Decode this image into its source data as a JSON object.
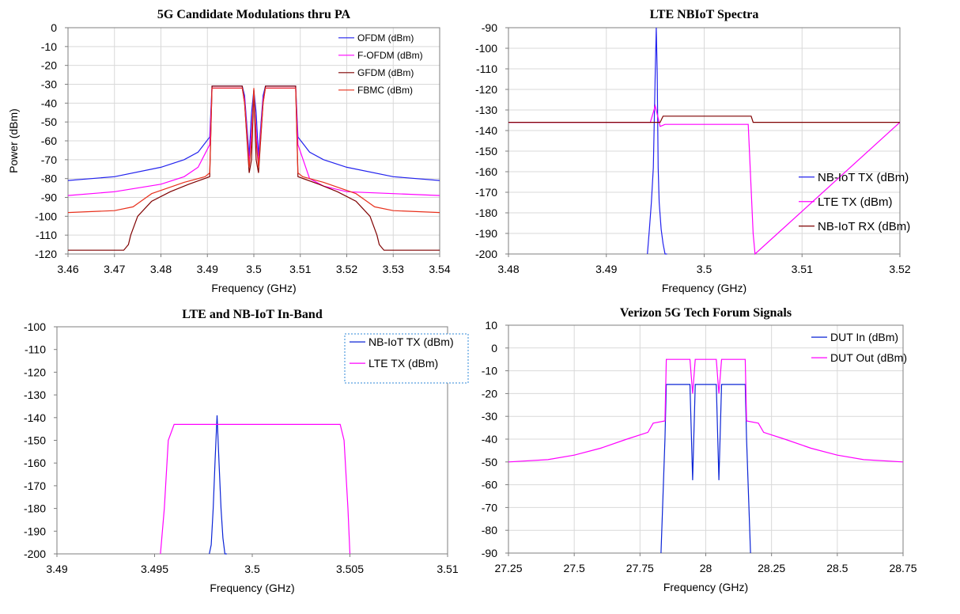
{
  "colors": {
    "blue": "#2222ee",
    "magenta": "#ff00ff",
    "darkred": "#7f0000",
    "red": "#e8301c",
    "navy": "#0b24d6"
  },
  "chart_data": [
    {
      "id": "c1",
      "type": "line",
      "title": "5G Candidate Modulations thru PA",
      "xlabel": "Frequency (GHz)",
      "ylabel": "Power (dBm)",
      "xlim": [
        3.46,
        3.54
      ],
      "ylim": [
        -120,
        0
      ],
      "xticks": [
        3.46,
        3.47,
        3.48,
        3.49,
        3.5,
        3.51,
        3.52,
        3.53,
        3.54
      ],
      "xtick_labels": [
        "3.46",
        "3.47",
        "3.48",
        "3.49",
        "3.5",
        "3.51",
        "3.52",
        "3.53",
        "3.54"
      ],
      "yticks": [
        0,
        -10,
        -20,
        -30,
        -40,
        -50,
        -60,
        -70,
        -80,
        -90,
        -100,
        -110,
        -120
      ],
      "ytick_labels": [
        "0",
        "-10",
        "-20",
        "-30",
        "-40",
        "-50",
        "-60",
        "-70",
        "-80",
        "-90",
        "-100",
        "-110",
        "-120"
      ],
      "grid": true,
      "legend": "top-right",
      "series": [
        {
          "name": "OFDM (dBm)",
          "color_key": "blue",
          "x": [
            3.46,
            3.47,
            3.48,
            3.485,
            3.488,
            3.4905,
            3.491,
            3.4975,
            3.498,
            3.499,
            3.4995,
            3.5,
            3.5005,
            3.501,
            3.502,
            3.5025,
            3.509,
            3.5095,
            3.512,
            3.515,
            3.52,
            3.53,
            3.54
          ],
          "y": [
            -81,
            -79,
            -74,
            -70,
            -66,
            -58,
            -31,
            -31,
            -36,
            -68,
            -45,
            -33,
            -45,
            -68,
            -36,
            -31,
            -31,
            -58,
            -66,
            -70,
            -74,
            -79,
            -81
          ]
        },
        {
          "name": "F-OFDM (dBm)",
          "color_key": "magenta",
          "x": [
            3.46,
            3.47,
            3.48,
            3.485,
            3.488,
            3.4905,
            3.491,
            3.4975,
            3.498,
            3.499,
            3.4995,
            3.5,
            3.5005,
            3.501,
            3.502,
            3.5025,
            3.509,
            3.5095,
            3.512,
            3.515,
            3.52,
            3.53,
            3.54
          ],
          "y": [
            -89,
            -87,
            -83,
            -79,
            -74,
            -62,
            -32,
            -32,
            -38,
            -72,
            -55,
            -35,
            -55,
            -72,
            -38,
            -32,
            -32,
            -62,
            -80,
            -84,
            -87,
            -88,
            -89
          ]
        },
        {
          "name": "GFDM (dBm)",
          "color_key": "darkred",
          "x": [
            3.46,
            3.472,
            3.473,
            3.4735,
            3.475,
            3.478,
            3.482,
            3.486,
            3.4905,
            3.491,
            3.4975,
            3.498,
            3.499,
            3.4995,
            3.5,
            3.5005,
            3.501,
            3.502,
            3.5025,
            3.509,
            3.5095,
            3.514,
            3.518,
            3.522,
            3.525,
            3.5265,
            3.527,
            3.528,
            3.54
          ],
          "y": [
            -118,
            -118,
            -115,
            -110,
            -100,
            -92,
            -87,
            -83,
            -79,
            -31,
            -31,
            -40,
            -77,
            -70,
            -33,
            -70,
            -77,
            -40,
            -31,
            -31,
            -79,
            -83,
            -87,
            -92,
            -100,
            -110,
            -115,
            -118,
            -118
          ]
        },
        {
          "name": "FBMC (dBm)",
          "color_key": "red",
          "x": [
            3.46,
            3.47,
            3.474,
            3.478,
            3.485,
            3.4895,
            3.4905,
            3.491,
            3.4975,
            3.498,
            3.499,
            3.4995,
            3.5,
            3.5005,
            3.501,
            3.502,
            3.5025,
            3.509,
            3.5095,
            3.5105,
            3.515,
            3.522,
            3.526,
            3.53,
            3.54
          ],
          "y": [
            -98,
            -97,
            -95,
            -88,
            -82,
            -79,
            -77,
            -32,
            -32,
            -40,
            -74,
            -60,
            -32,
            -60,
            -74,
            -40,
            -32,
            -32,
            -77,
            -79,
            -82,
            -88,
            -95,
            -97,
            -98
          ]
        }
      ]
    },
    {
      "id": "c2",
      "type": "line",
      "title": "LTE NBIoT Spectra",
      "xlabel": "Frequency (GHz)",
      "ylabel": "",
      "xlim": [
        3.48,
        3.52
      ],
      "ylim": [
        -200,
        -90
      ],
      "xticks": [
        3.48,
        3.49,
        3.5,
        3.51,
        3.52
      ],
      "xtick_labels": [
        "3.48",
        "3.49",
        "3.5",
        "3.51",
        "3.52"
      ],
      "yticks": [
        -90,
        -100,
        -110,
        -120,
        -130,
        -140,
        -150,
        -160,
        -170,
        -180,
        -190,
        -200
      ],
      "ytick_labels": [
        "-90",
        "-100",
        "-110",
        "-120",
        "-130",
        "-140",
        "-150",
        "-160",
        "-170",
        "-180",
        "-190",
        "-200"
      ],
      "grid": true,
      "legend": "right",
      "series": [
        {
          "name": "NB-IoT TX (dBm)",
          "color_key": "blue",
          "x": [
            3.4942,
            3.4944,
            3.4946,
            3.4948,
            3.495,
            3.4951,
            3.4952,
            3.4953,
            3.4954,
            3.4956,
            3.4958,
            3.496,
            3.4962
          ],
          "y": [
            -200,
            -188,
            -175,
            -158,
            -112,
            -90,
            -112,
            -158,
            -175,
            -188,
            -195,
            -200,
            -200
          ]
        },
        {
          "name": "LTE TX (dBm)",
          "color_key": "magenta",
          "x": [
            3.48,
            3.4945,
            3.495,
            3.4955,
            3.496,
            3.5045,
            3.505,
            3.5052,
            3.52
          ],
          "y": [
            -136,
            -136,
            -128,
            -138,
            -137,
            -137,
            -190,
            -200,
            -136
          ]
        },
        {
          "name": "NB-IoT RX (dBm)",
          "color_key": "darkred",
          "x": [
            3.48,
            3.4955,
            3.4958,
            3.5048,
            3.505,
            3.52
          ],
          "y": [
            -136,
            -136,
            -133,
            -133,
            -136,
            -136
          ]
        }
      ]
    },
    {
      "id": "c3",
      "type": "line",
      "title": "LTE and NB-IoT In-Band",
      "xlabel": "Frequency (GHz)",
      "ylabel": "",
      "xlim": [
        3.49,
        3.51
      ],
      "ylim": [
        -200,
        -100
      ],
      "xticks": [
        3.49,
        3.495,
        3.5,
        3.505,
        3.51
      ],
      "xtick_labels": [
        "3.49",
        "3.495",
        "3.5",
        "3.505",
        "3.51"
      ],
      "yticks": [
        -100,
        -110,
        -120,
        -130,
        -140,
        -150,
        -160,
        -170,
        -180,
        -190,
        -200
      ],
      "ytick_labels": [
        "-100",
        "-110",
        "-120",
        "-130",
        "-140",
        "-150",
        "-160",
        "-170",
        "-180",
        "-190",
        "-200"
      ],
      "grid": false,
      "legend": "top-right",
      "series": [
        {
          "name": "NB-IoT TX (dBm)",
          "color_key": "navy",
          "x": [
            3.4978,
            3.4979,
            3.498,
            3.4981,
            3.4982,
            3.4983,
            3.4984,
            3.4985,
            3.4986,
            3.4987
          ],
          "y": [
            -200,
            -196,
            -180,
            -158,
            -139,
            -160,
            -180,
            -193,
            -200,
            -200
          ]
        },
        {
          "name": "LTE TX (dBm)",
          "color_key": "magenta",
          "x": [
            3.4953,
            3.4955,
            3.4957,
            3.496,
            3.5,
            3.5045,
            3.5047,
            3.5049,
            3.505
          ],
          "y": [
            -200,
            -180,
            -150,
            -143,
            -143,
            -143,
            -150,
            -180,
            -200
          ]
        }
      ]
    },
    {
      "id": "c4",
      "type": "line",
      "title": "Verizon 5G Tech Forum Signals",
      "xlabel": "Frequency (GHz)",
      "ylabel": "",
      "xlim": [
        27.25,
        28.75
      ],
      "ylim": [
        -90,
        10
      ],
      "xticks": [
        27.25,
        27.5,
        27.75,
        28,
        28.25,
        28.5,
        28.75
      ],
      "xtick_labels": [
        "27.25",
        "27.5",
        "27.75",
        "28",
        "28.25",
        "28.5",
        "28.75"
      ],
      "yticks": [
        10,
        0,
        -10,
        -20,
        -30,
        -40,
        -50,
        -60,
        -70,
        -80,
        -90
      ],
      "ytick_labels": [
        "10",
        "0",
        "-10",
        "-20",
        "-30",
        "-40",
        "-50",
        "-60",
        "-70",
        "-80",
        "-90"
      ],
      "grid": true,
      "legend": "top-right",
      "series": [
        {
          "name": "DUT In (dBm)",
          "color_key": "navy",
          "x": [
            27.83,
            27.845,
            27.85,
            27.94,
            27.95,
            27.96,
            28.04,
            28.05,
            28.06,
            28.15,
            28.155,
            28.17
          ],
          "y": [
            -90,
            -40,
            -16,
            -16,
            -58,
            -16,
            -16,
            -58,
            -16,
            -16,
            -40,
            -90
          ]
        },
        {
          "name": "DUT Out (dBm)",
          "color_key": "magenta",
          "x": [
            27.25,
            27.4,
            27.5,
            27.6,
            27.7,
            27.78,
            27.8,
            27.845,
            27.85,
            27.94,
            27.95,
            27.96,
            28.04,
            28.05,
            28.06,
            28.15,
            28.155,
            28.2,
            28.22,
            28.3,
            28.4,
            28.5,
            28.6,
            28.75
          ],
          "y": [
            -50,
            -49,
            -47,
            -44,
            -40,
            -37,
            -33,
            -32,
            -5,
            -5,
            -20,
            -5,
            -5,
            -20,
            -5,
            -5,
            -32,
            -33,
            -37,
            -40,
            -44,
            -47,
            -49,
            -50
          ]
        }
      ]
    }
  ]
}
